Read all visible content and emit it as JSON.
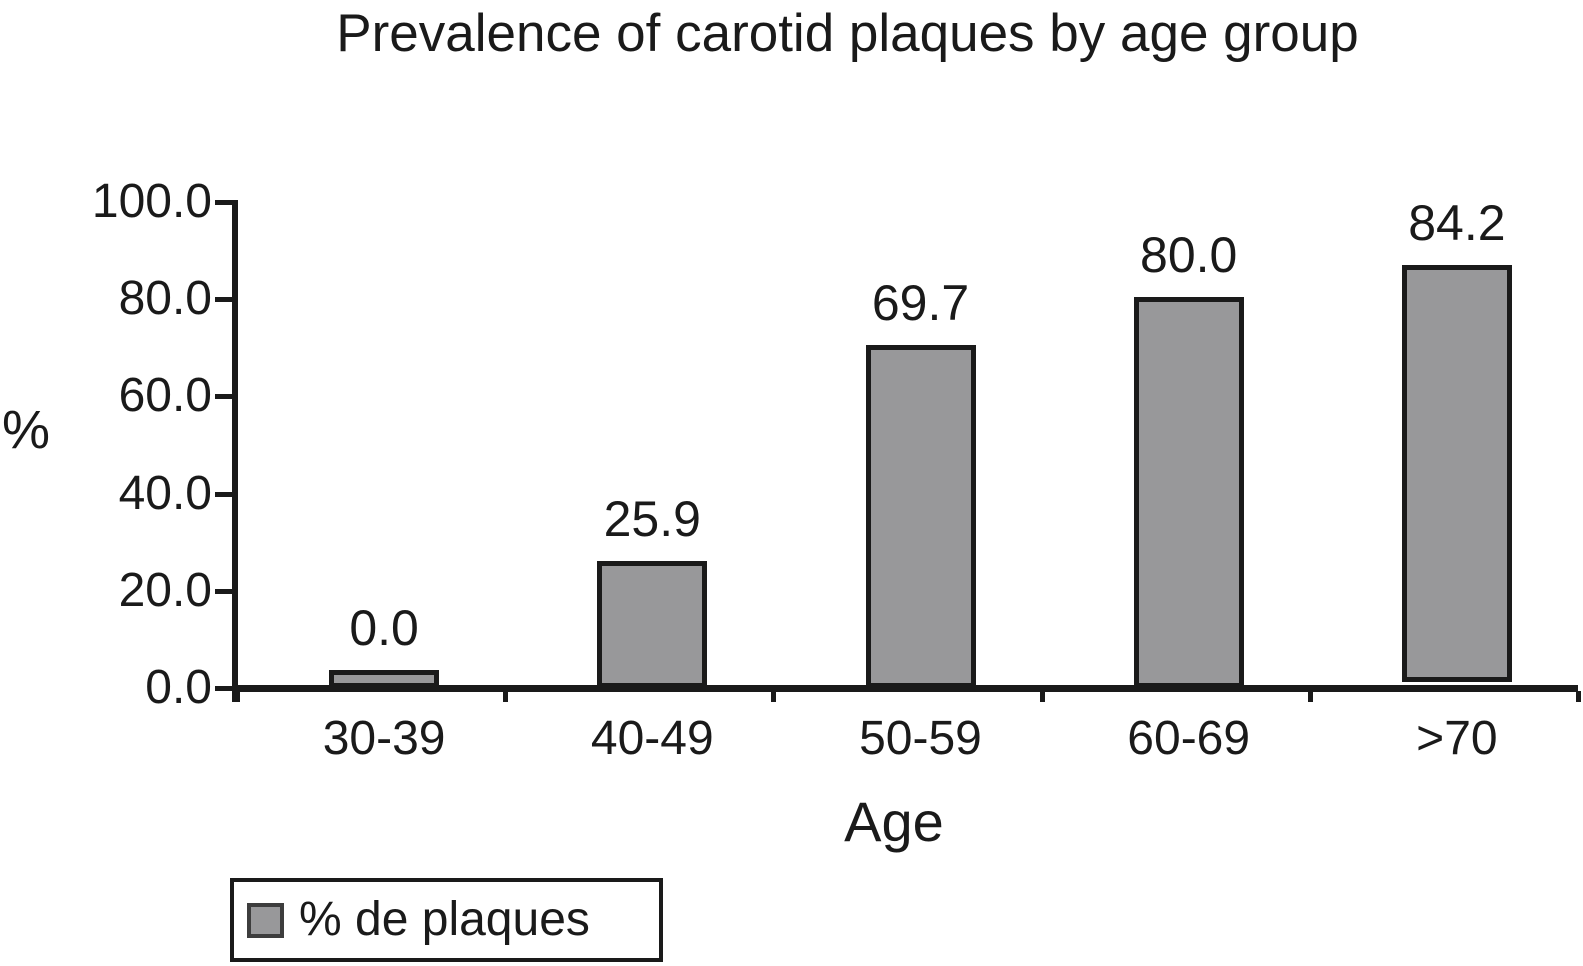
{
  "title": "Prevalence of carotid plaques by age group",
  "chart_data": {
    "type": "bar",
    "title": "Prevalence of carotid plaques by age group",
    "xlabel": "Age",
    "ylabel": "%",
    "categories": [
      "30-39",
      "40-49",
      "50-59",
      "60-69",
      ">70"
    ],
    "series": [
      {
        "name": "% de plaques",
        "values": [
          0.0,
          25.9,
          69.7,
          80.0,
          84.2
        ]
      }
    ],
    "value_labels": [
      "0.0",
      "25.9",
      "69.7",
      "80.0",
      "84.2"
    ],
    "drawn_bar_heights_pct": [
      3.7,
      26.1,
      70.6,
      80.4,
      85.8
    ],
    "drawn_bar_bottom_offsets_pct": [
      0,
      0,
      0,
      0,
      1.2
    ],
    "ylim": [
      0,
      100
    ],
    "ytick_labels": [
      "100.0",
      "80.0",
      "60.0",
      "40.0",
      "20.0",
      "0.0"
    ],
    "ytick_values": [
      100,
      80,
      60,
      40,
      20,
      0
    ],
    "grid": false,
    "legend": {
      "position": "bottom-left",
      "entries": [
        "% de plaques"
      ]
    },
    "colors": {
      "bar_fill": "#98989a",
      "bar_border": "#1a1a1a",
      "axis": "#1a1a1a",
      "text": "#1a1a1a",
      "background": "#ffffff"
    }
  }
}
